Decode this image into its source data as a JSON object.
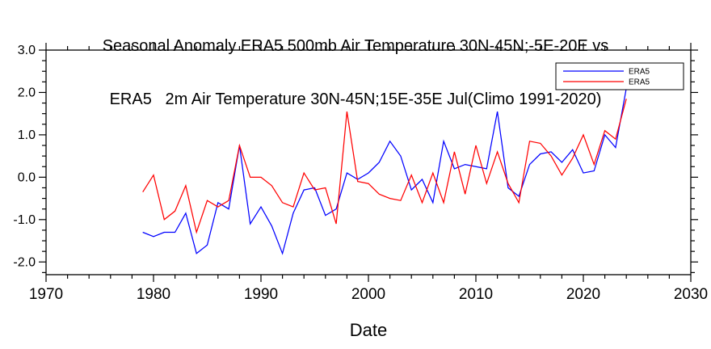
{
  "title": {
    "line1": "Seasonal Anomaly ERA5 500mb Air Temperature 30N-45N;-5E-20E vs",
    "line2": "ERA5   2m Air Temperature 30N-45N;15E-35E Jul(Climo 1991-2020)"
  },
  "colors": {
    "axis": "#000000",
    "background": "#ffffff",
    "series_blue": "#0000ff",
    "series_red": "#ff0000"
  },
  "chart_data": {
    "type": "line",
    "xlabel": "Date",
    "xlim": [
      1970,
      2030
    ],
    "ylim": [
      -2.3,
      3.0
    ],
    "xticks": [
      1970,
      1980,
      1990,
      2000,
      2010,
      2020,
      2030
    ],
    "xtick_labels": [
      "1970",
      "1980",
      "1990",
      "2000",
      "2010",
      "2020",
      "2030"
    ],
    "x_minor_step": 2,
    "yticks": [
      -2,
      -1,
      0,
      1,
      2,
      3
    ],
    "ytick_labels": [
      "-2.0",
      "-1.0",
      "0.0",
      "1.0",
      "2.0",
      "3.0"
    ],
    "y_minor_step": 0.25,
    "grid": false,
    "legend_position": "top-right",
    "x": [
      1979,
      1980,
      1981,
      1982,
      1983,
      1984,
      1985,
      1986,
      1987,
      1988,
      1989,
      1990,
      1991,
      1992,
      1993,
      1994,
      1995,
      1996,
      1997,
      1998,
      1999,
      2000,
      2001,
      2002,
      2003,
      2004,
      2005,
      2006,
      2007,
      2008,
      2009,
      2010,
      2011,
      2012,
      2013,
      2014,
      2015,
      2016,
      2017,
      2018,
      2019,
      2020,
      2021,
      2022,
      2023,
      2024
    ],
    "series": [
      {
        "name": "ERA5",
        "color": "#0000ff",
        "values": [
          -1.3,
          -1.4,
          -1.3,
          -1.3,
          -0.85,
          -1.8,
          -1.6,
          -0.6,
          -0.75,
          0.75,
          -1.1,
          -0.7,
          -1.15,
          -1.8,
          -0.85,
          -0.3,
          -0.25,
          -0.9,
          -0.75,
          0.1,
          -0.05,
          0.1,
          0.35,
          0.85,
          0.5,
          -0.3,
          -0.05,
          -0.6,
          0.85,
          0.2,
          0.3,
          0.25,
          0.2,
          1.55,
          -0.25,
          -0.45,
          0.3,
          0.55,
          0.6,
          0.35,
          0.65,
          0.1,
          0.15,
          1.0,
          0.7,
          2.1
        ]
      },
      {
        "name": "ERA5",
        "color": "#ff0000",
        "values": [
          -0.35,
          0.05,
          -1.0,
          -0.8,
          -0.2,
          -1.3,
          -0.55,
          -0.7,
          -0.55,
          0.75,
          0.0,
          0.0,
          -0.2,
          -0.6,
          -0.7,
          0.1,
          -0.3,
          -0.25,
          -1.1,
          1.55,
          -0.1,
          -0.15,
          -0.4,
          -0.5,
          -0.55,
          0.05,
          -0.6,
          0.1,
          -0.6,
          0.6,
          -0.4,
          0.75,
          -0.15,
          0.6,
          -0.15,
          -0.6,
          0.85,
          0.8,
          0.5,
          0.05,
          0.45,
          1.0,
          0.3,
          1.1,
          0.9,
          1.85
        ]
      }
    ],
    "legend": {
      "entries": [
        {
          "label": "ERA5",
          "color": "#0000ff"
        },
        {
          "label": "ERA5",
          "color": "#ff0000"
        }
      ]
    }
  }
}
